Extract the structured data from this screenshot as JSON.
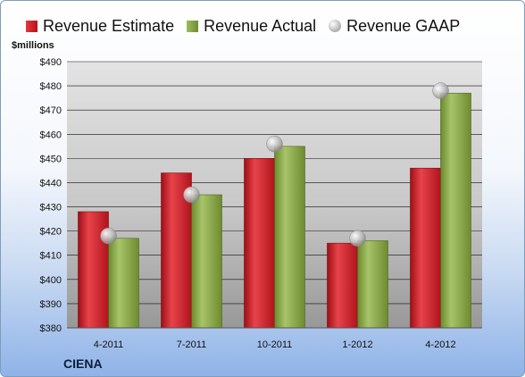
{
  "company": "CIENA",
  "chart_data": {
    "type": "bar",
    "ylabel": "$millions",
    "ylim": [
      380,
      490
    ],
    "ytick_step": 10,
    "ytick_prefix": "$",
    "categories": [
      "4-2011",
      "7-2011",
      "10-2011",
      "1-2012",
      "4-2012"
    ],
    "series": [
      {
        "name": "Revenue Estimate",
        "type": "bar",
        "color": "#c41e26",
        "values": [
          428,
          444,
          450,
          415,
          446
        ]
      },
      {
        "name": "Revenue Actual",
        "type": "bar",
        "color": "#8aa545",
        "values": [
          417,
          435,
          455,
          416,
          477
        ]
      },
      {
        "name": "Revenue GAAP",
        "type": "marker",
        "color": "#b8b8b8",
        "values": [
          418,
          435,
          456,
          417,
          478
        ]
      }
    ],
    "legend": "top",
    "grid": true
  }
}
